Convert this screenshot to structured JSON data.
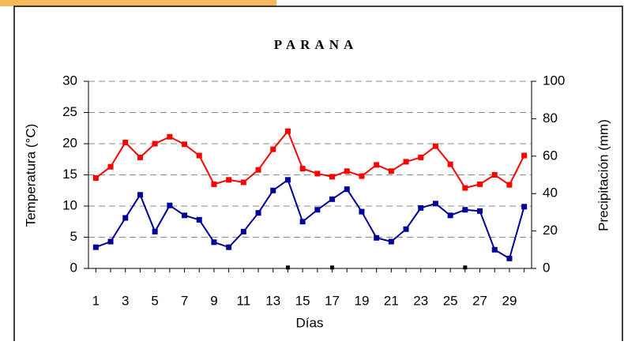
{
  "chart_data": {
    "type": "line",
    "title": "PARANA",
    "x_label": "Días",
    "y_label": "Temperatura (°C)",
    "y2_label": "Precipitación (mm)",
    "categories": [
      1,
      null,
      3,
      null,
      5,
      null,
      7,
      null,
      9,
      null,
      11,
      null,
      13,
      null,
      15,
      null,
      17,
      null,
      19,
      null,
      21,
      null,
      23,
      null,
      25,
      null,
      27,
      null,
      29,
      null
    ],
    "ylim": [
      0,
      30
    ],
    "yticks": [
      0,
      5,
      10,
      15,
      20,
      25,
      30
    ],
    "y2lim": [
      0,
      100
    ],
    "y2ticks": [
      0,
      20,
      40,
      60,
      80,
      100
    ],
    "grid": true,
    "series": [
      {
        "color": "#ff0000",
        "values": [
          14.5,
          16.3,
          20.2,
          17.8,
          20,
          21.1,
          19.9,
          18.1,
          13.5,
          14.2,
          13.8,
          15.8,
          19.1,
          22,
          16,
          15.2,
          14.7,
          15.6,
          14.8,
          16.6,
          15.6,
          17.1,
          17.8,
          19.6,
          16.7,
          12.9,
          13.5,
          15,
          13.4,
          18.1
        ]
      },
      {
        "color": "#000099",
        "values": [
          3.4,
          4.3,
          8.1,
          11.8,
          5.9,
          10.1,
          8.5,
          7.8,
          4.2,
          3.4,
          5.9,
          8.9,
          12.5,
          14.2,
          7.5,
          9.4,
          11.1,
          12.7,
          9.1,
          4.9,
          4.3,
          6.3,
          9.7,
          10.4,
          8.5,
          9.4,
          9.2,
          3,
          1.6,
          9.9
        ]
      },
      {
        "color": "#000000",
        "axis": "y2",
        "values": [
          null,
          null,
          null,
          null,
          null,
          null,
          null,
          null,
          null,
          null,
          null,
          null,
          null,
          0.5,
          null,
          null,
          0.5,
          null,
          null,
          null,
          null,
          null,
          null,
          null,
          null,
          0.5,
          null,
          null,
          null,
          null
        ]
      }
    ]
  }
}
